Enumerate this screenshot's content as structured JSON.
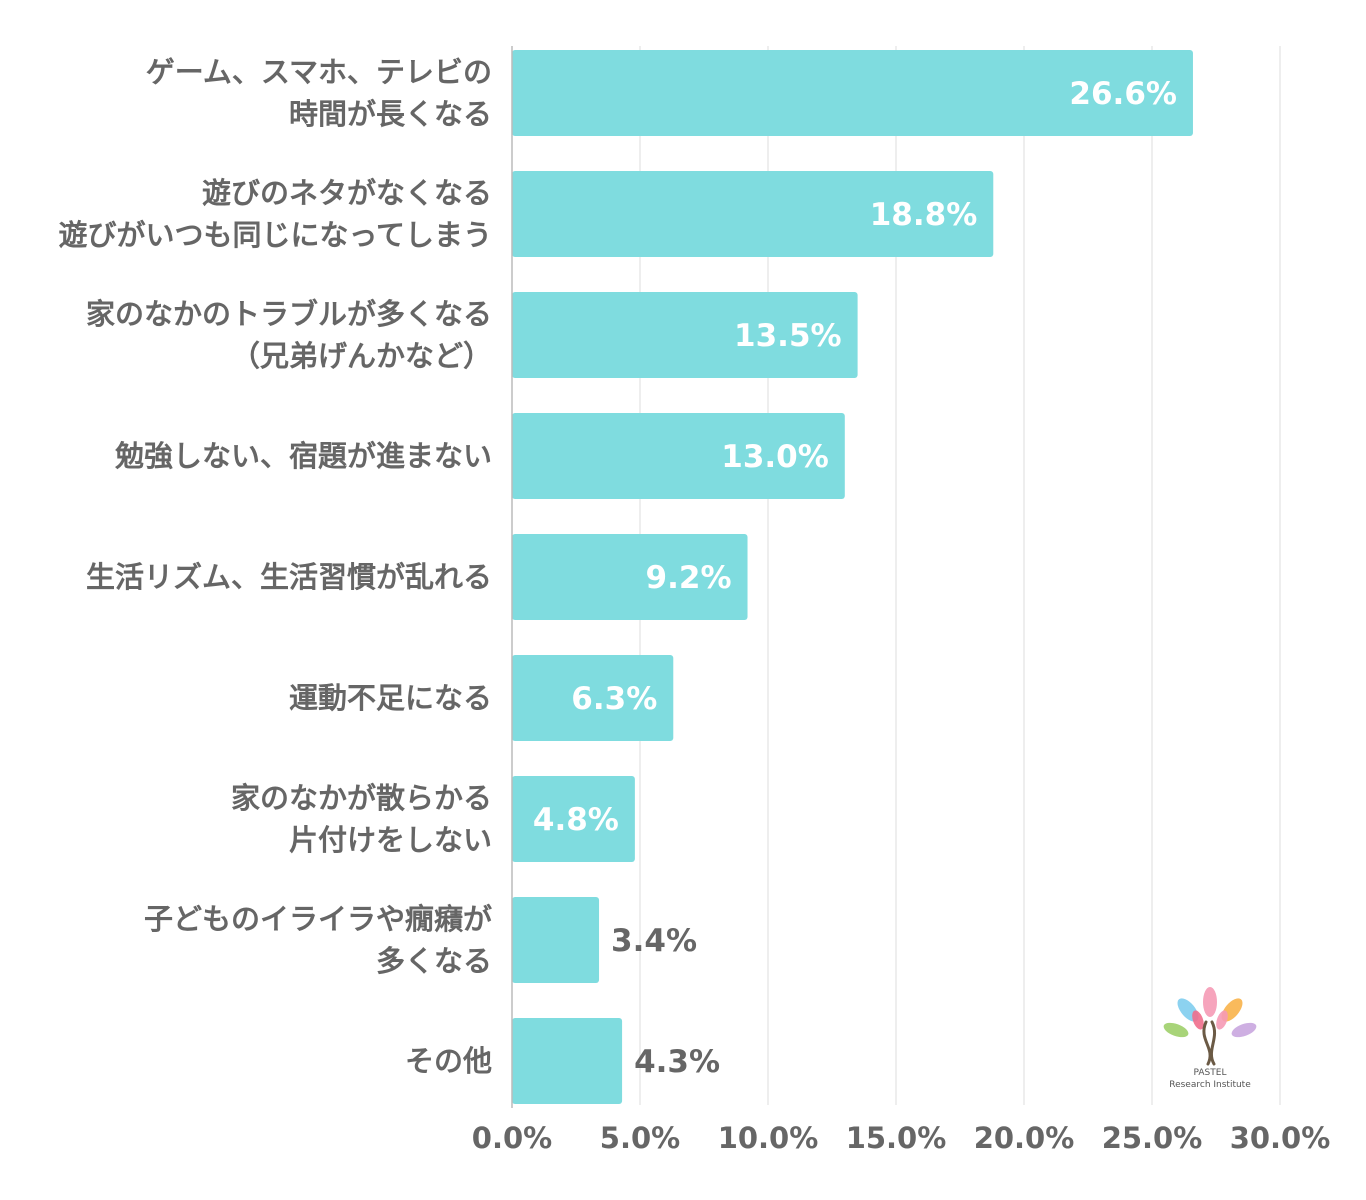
{
  "chart_data": {
    "type": "bar",
    "orientation": "horizontal",
    "categories": [
      [
        "ゲーム、スマホ、テレビの",
        "時間が長くなる"
      ],
      [
        "遊びのネタがなくなる",
        "遊びがいつも同じになってしまう"
      ],
      [
        "家のなかのトラブルが多くなる",
        "（兄弟げんかなど）"
      ],
      [
        "勉強しない、宿題が進まない"
      ],
      [
        "生活リズム、生活習慣が乱れる"
      ],
      [
        "運動不足になる"
      ],
      [
        "家のなかが散らかる",
        "片付けをしない"
      ],
      [
        "子どものイライラや癇癪が",
        "多くなる"
      ],
      [
        "その他"
      ]
    ],
    "values": [
      26.6,
      18.8,
      13.5,
      13.0,
      9.2,
      6.3,
      4.8,
      3.4,
      4.3
    ],
    "value_labels": [
      "26.6%",
      "18.8%",
      "13.5%",
      "13.0%",
      "9.2%",
      "6.3%",
      "4.8%",
      "3.4%",
      "4.3%"
    ],
    "xlim": [
      0,
      30
    ],
    "ticks": [
      0,
      5,
      10,
      15,
      20,
      25,
      30
    ],
    "tick_labels": [
      "0.0%",
      "5.0%",
      "10.0%",
      "15.0%",
      "20.0%",
      "25.0%",
      "30.0%"
    ],
    "bar_color": "#7fdcdf",
    "label_inside_color": "#ffffff",
    "label_outside_color": "#666666",
    "grid": true,
    "title": "",
    "xlabel": "",
    "ylabel": ""
  },
  "logo": {
    "line1": "PASTEL",
    "line2": "Research Institute",
    "petal_colors": [
      "#f59ab5",
      "#7fcdee",
      "#f8b24a",
      "#9fcf6a",
      "#c9a6df",
      "#f06e8c"
    ],
    "trunk_color": "#6b5a45"
  }
}
